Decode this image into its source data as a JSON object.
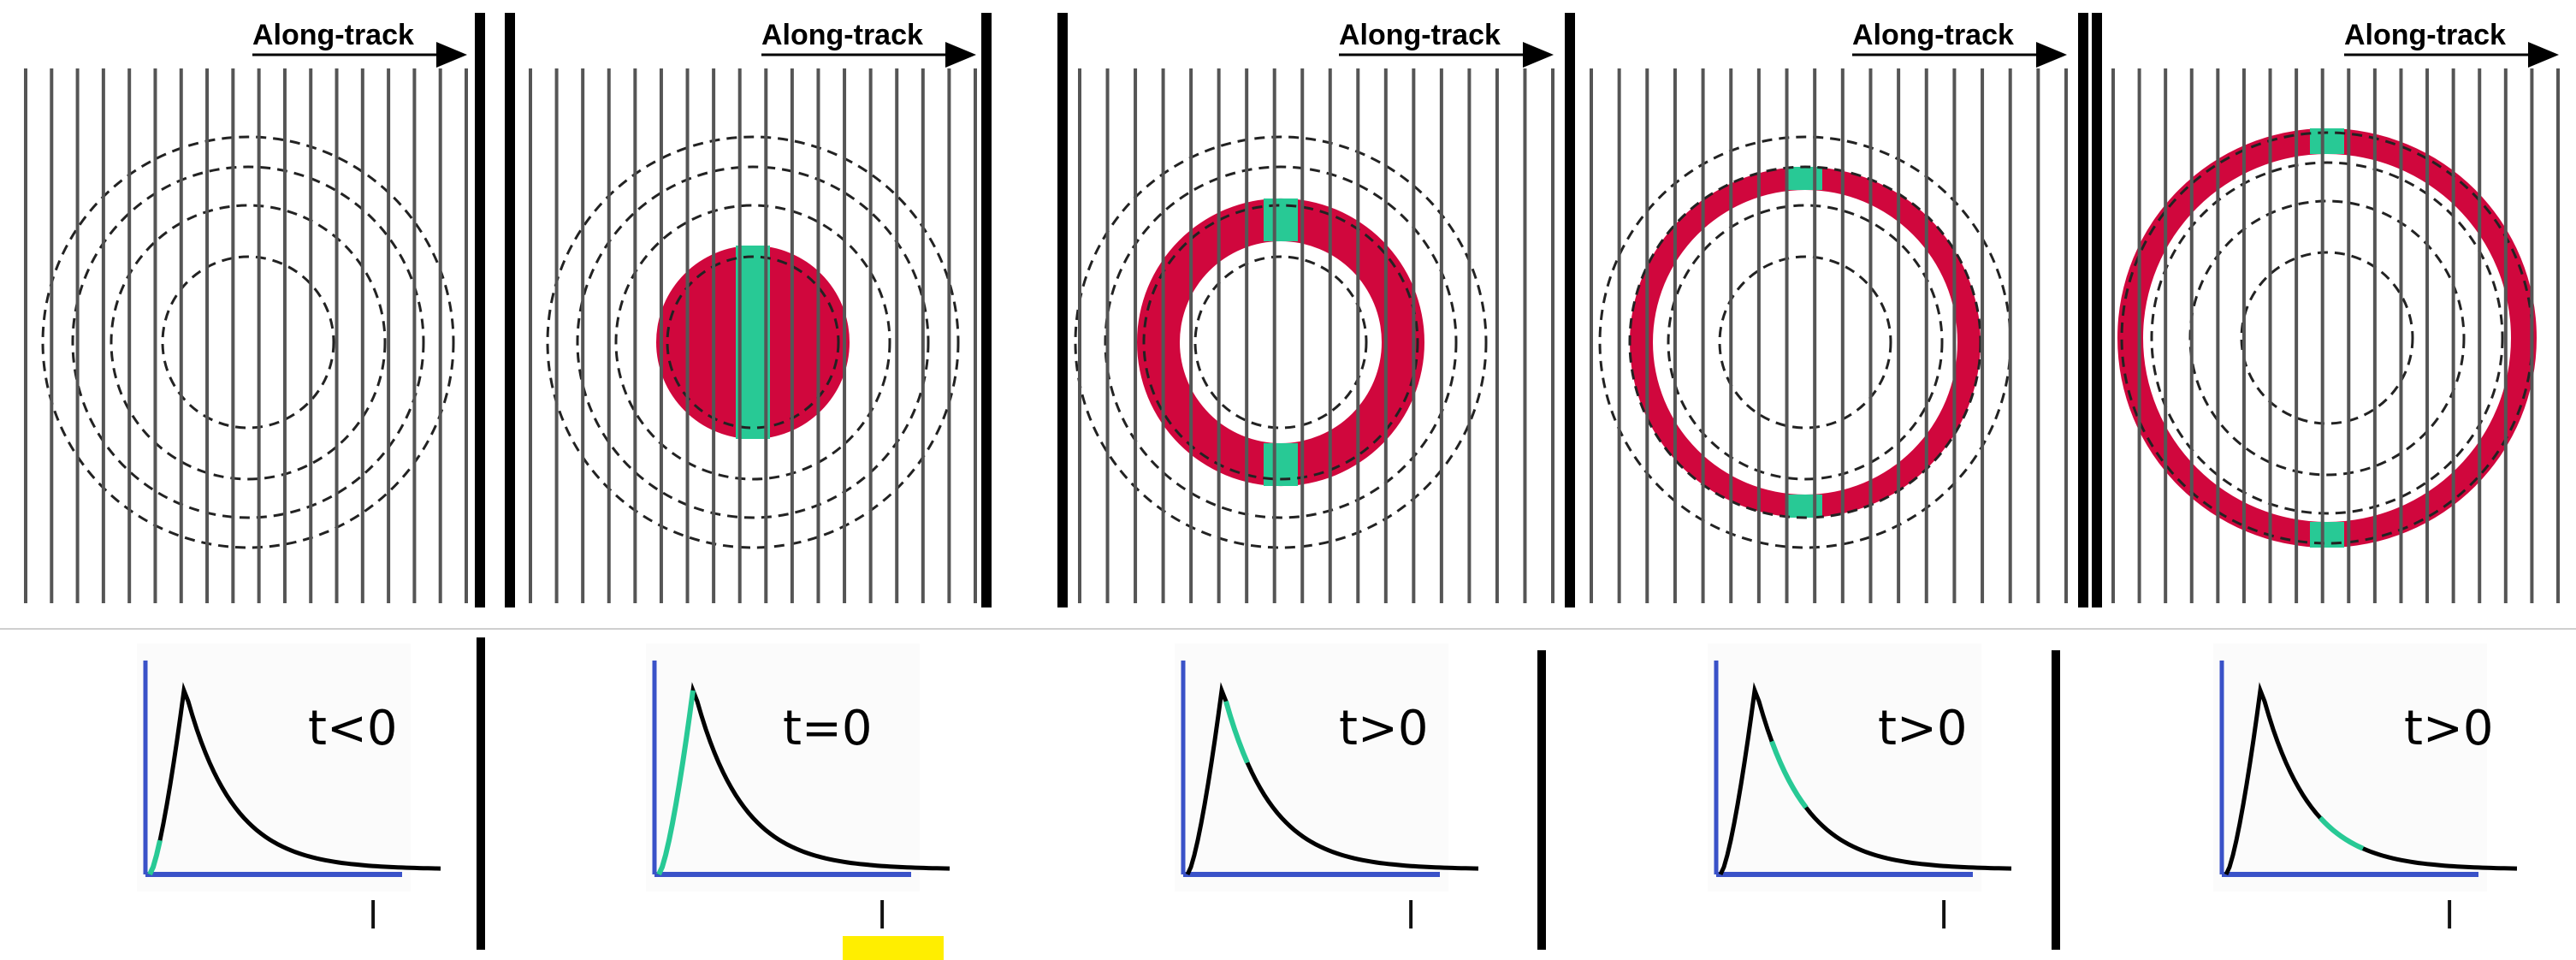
{
  "figure": {
    "panels": [
      {
        "id": "p1",
        "direction_label": "Along-track",
        "time_label": "t<0",
        "footprint": "none",
        "tick_mark": "l"
      },
      {
        "id": "p2",
        "direction_label": "Along-track",
        "time_label": "t=0",
        "footprint": "disk",
        "tick_mark": "l"
      },
      {
        "id": "p3",
        "direction_label": "Along-track",
        "time_label": "t>0",
        "footprint": "ring1",
        "tick_mark": "l"
      },
      {
        "id": "p4",
        "direction_label": "Along-track",
        "time_label": "t>0",
        "footprint": "ring2",
        "tick_mark": "l"
      },
      {
        "id": "p5",
        "direction_label": "Along-track",
        "time_label": "t>0",
        "footprint": "ring3",
        "tick_mark": "l"
      }
    ],
    "waveform_highlight": [
      "leading-edge-start",
      "leading-edge",
      "peak-right",
      "trailing-mid",
      "trailing-late"
    ],
    "colors": {
      "illuminated_area": "#d0073d",
      "nadir_strip": "#28c995",
      "axis": "#3a52c8",
      "track_lines": "#555555",
      "circles": "#222222",
      "highlight_marker": "#ffee00"
    }
  }
}
